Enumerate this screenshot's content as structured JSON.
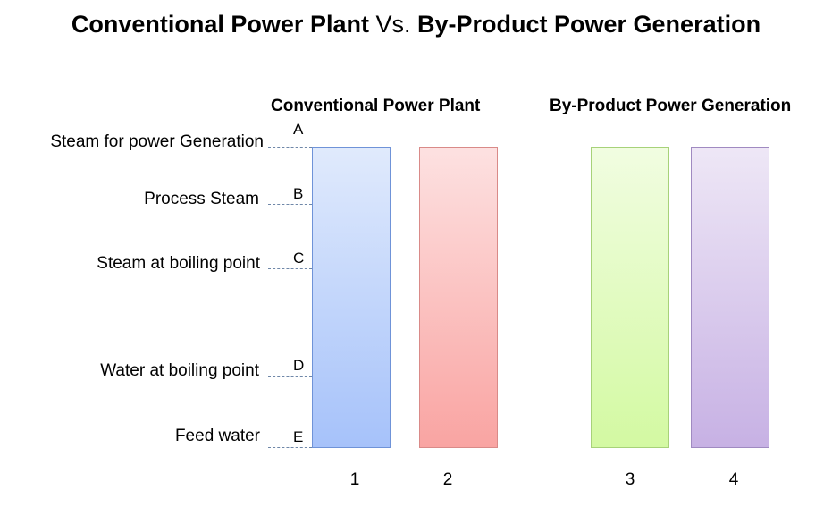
{
  "title": {
    "part1": "Conventional Power Plant",
    "part2": "Vs.",
    "part3": "By-Product Power Generation"
  },
  "groups": {
    "conventional": "Conventional Power Plant",
    "byproduct": "By-Product Power Generation"
  },
  "levels": [
    {
      "label": "Steam for power Generation",
      "letter": "A"
    },
    {
      "label": "Process Steam",
      "letter": "B"
    },
    {
      "label": "Steam at boiling point",
      "letter": "C"
    },
    {
      "label": "Water at boiling point",
      "letter": "D"
    },
    {
      "label": "Feed water",
      "letter": "E"
    }
  ],
  "bars": [
    {
      "number": "1",
      "color": "#a6c2fa"
    },
    {
      "number": "2",
      "color": "#f9a4a2"
    },
    {
      "number": "3",
      "color": "#d3f9a2"
    },
    {
      "number": "4",
      "color": "#c7b1e4"
    }
  ]
}
